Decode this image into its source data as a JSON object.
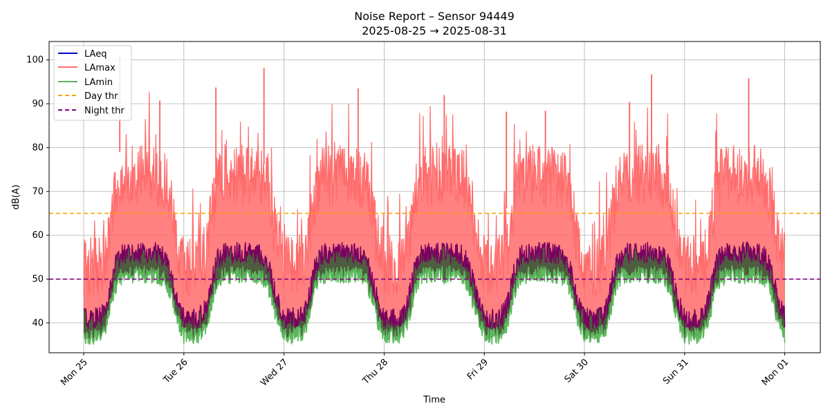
{
  "chart_data": {
    "type": "line",
    "title": "Noise Report – Sensor 94449",
    "subtitle": "2025-08-25 → 2025-08-31",
    "xlabel": "Time",
    "ylabel": "dB(A)",
    "ylim": [
      33.2,
      104.2
    ],
    "xlim_days": [
      -0.35,
      7.35
    ],
    "grid": true,
    "legend_position": "top-left",
    "x_ticks": [
      {
        "day": 0,
        "label": "Mon 25"
      },
      {
        "day": 1,
        "label": "Tue 26"
      },
      {
        "day": 2,
        "label": "Wed 27"
      },
      {
        "day": 3,
        "label": "Thu 28"
      },
      {
        "day": 4,
        "label": "Fri 29"
      },
      {
        "day": 5,
        "label": "Sat 30"
      },
      {
        "day": 6,
        "label": "Sun 31"
      },
      {
        "day": 7,
        "label": "Mon 01"
      }
    ],
    "y_ticks": [
      40,
      50,
      60,
      70,
      80,
      90,
      100
    ],
    "series": [
      {
        "name": "LAeq",
        "color": "#0000cc",
        "style": "solid",
        "night_level": 41,
        "day_level": 56
      },
      {
        "name": "LAmax",
        "color": "#ff6b6b",
        "style": "solid",
        "night_level": 50,
        "day_level": 71
      },
      {
        "name": "LAmin",
        "color": "#5cb85c",
        "style": "solid",
        "night_level": 38,
        "day_level": 52
      }
    ],
    "thresholds": [
      {
        "name": "Day thr",
        "value": 65,
        "color": "#ffa500",
        "style": "dashed"
      },
      {
        "name": "Night thr",
        "value": 50,
        "color": "#800080",
        "style": "dashed"
      }
    ],
    "peak_events": [
      {
        "day": 0.36,
        "value": 101
      },
      {
        "day": 0.76,
        "value": 90.7
      },
      {
        "day": 1.32,
        "value": 93.7
      },
      {
        "day": 1.8,
        "value": 98.1
      },
      {
        "day": 2.74,
        "value": 93.5
      },
      {
        "day": 3.6,
        "value": 92
      },
      {
        "day": 4.22,
        "value": 88.2
      },
      {
        "day": 4.61,
        "value": 88.4
      },
      {
        "day": 5.45,
        "value": 90.4
      },
      {
        "day": 5.67,
        "value": 96.7
      },
      {
        "day": 6.64,
        "value": 95.8
      }
    ]
  }
}
